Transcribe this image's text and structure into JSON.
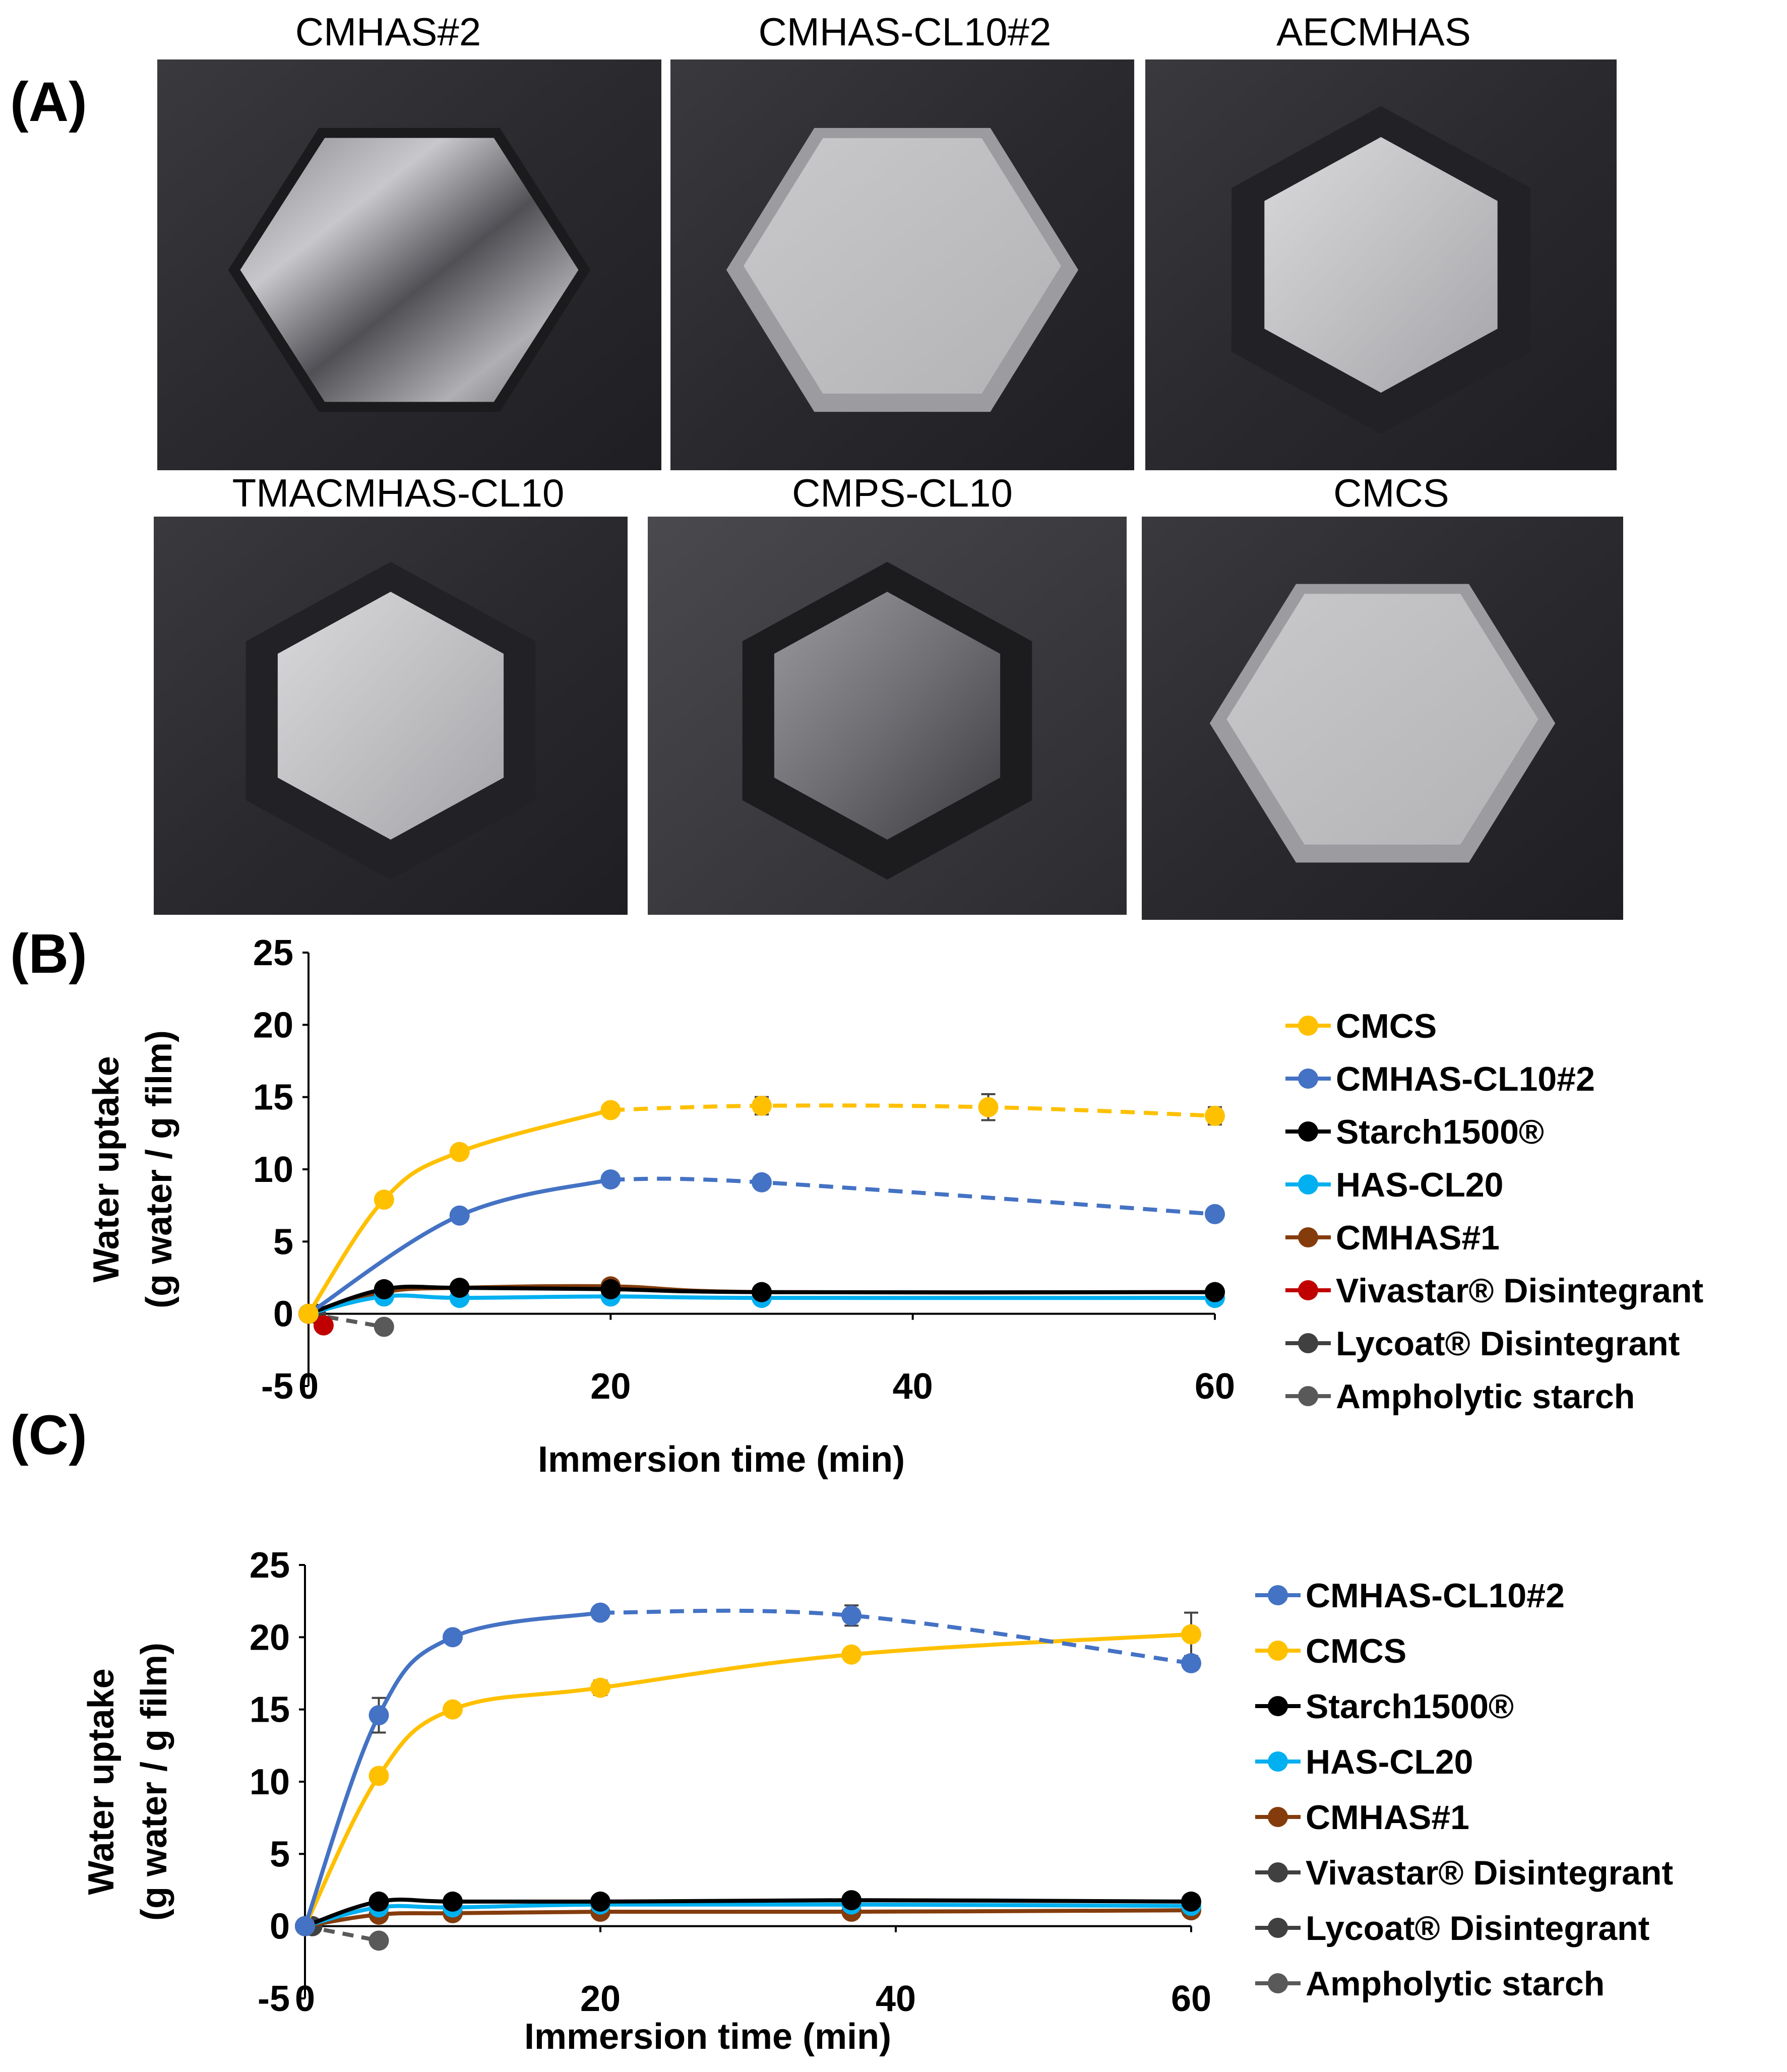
{
  "panels": {
    "a": "(A)",
    "b": "(B)",
    "c": "(C)"
  },
  "photos": [
    {
      "label": "CMHAS#2",
      "style": "wrinkled-clear"
    },
    {
      "label": "CMHAS-CL10#2",
      "style": "translucent-light"
    },
    {
      "label": "AECMHAS",
      "style": "framed-light"
    },
    {
      "label": "TMACMHAS-CL10",
      "style": "framed-light"
    },
    {
      "label": "CMPS-CL10",
      "style": "framed-dark"
    },
    {
      "label": "CMCS",
      "style": "translucent-light"
    }
  ],
  "colors": {
    "CMCS": "#ffc000",
    "CMHAS-CL10#2": "#4472c4",
    "Starch1500": "#000000",
    "HAS-CL20": "#00b0f0",
    "CMHAS#1": "#843c0c",
    "Vivastar": "#c00000",
    "Lycoat": "#404040",
    "Ampholytic": "#595959"
  },
  "chart_data": [
    {
      "id": "B",
      "type": "line",
      "xlabel": "Immersion time (min)",
      "ylabel_line1": "Water uptake",
      "ylabel_line2": "(g water / g film)",
      "xlim": [
        0,
        60
      ],
      "ylim": [
        -5,
        25
      ],
      "xticks": [
        0,
        20,
        40,
        60
      ],
      "yticks": [
        -5,
        0,
        5,
        10,
        15,
        20,
        25
      ],
      "legend_position": "right",
      "legend": [
        "CMCS",
        "CMHAS-CL10#2",
        "Starch1500®",
        "HAS-CL20",
        "CMHAS#1",
        "Vivastar® Disintegrant",
        "Lycoat® Disintegrant",
        "Ampholytic starch"
      ],
      "series": [
        {
          "name": "CMCS",
          "color_key": "CMCS",
          "solid_until": 20,
          "x": [
            0,
            5,
            10,
            20,
            30,
            45,
            60
          ],
          "y": [
            0,
            7.9,
            11.2,
            14.1,
            14.4,
            14.3,
            13.7
          ],
          "err": [
            0,
            0.3,
            0.3,
            0.4,
            0.6,
            0.9,
            0.6
          ]
        },
        {
          "name": "CMHAS-CL10#2",
          "color_key": "CMHAS-CL10#2",
          "solid_until": 20,
          "x": [
            0,
            10,
            20,
            30,
            60
          ],
          "y": [
            0,
            6.8,
            9.3,
            9.1,
            6.9
          ],
          "err": [
            0,
            0,
            0,
            0,
            0
          ]
        },
        {
          "name": "Starch1500®",
          "color_key": "Starch1500",
          "solid_until": 60,
          "x": [
            0,
            5,
            10,
            20,
            30,
            60
          ],
          "y": [
            0,
            1.7,
            1.8,
            1.7,
            1.5,
            1.5
          ],
          "err": [
            0,
            0,
            0,
            0,
            0,
            0
          ]
        },
        {
          "name": "HAS-CL20",
          "color_key": "HAS-CL20",
          "solid_until": 60,
          "x": [
            0,
            5,
            10,
            20,
            30,
            60
          ],
          "y": [
            0,
            1.2,
            1.1,
            1.2,
            1.1,
            1.1
          ],
          "err": [
            0,
            0,
            0,
            0,
            0,
            0
          ]
        },
        {
          "name": "CMHAS#1",
          "color_key": "CMHAS#1",
          "solid_until": 60,
          "x": [
            0,
            5,
            10,
            20,
            30,
            60
          ],
          "y": [
            0,
            1.5,
            1.8,
            1.9,
            1.5,
            1.5
          ],
          "err": [
            0,
            0,
            0,
            0,
            0,
            0
          ]
        },
        {
          "name": "Vivastar® Disintegrant",
          "color_key": "Vivastar",
          "solid_until": 60,
          "x": [
            0,
            1
          ],
          "y": [
            0,
            -0.8
          ],
          "err": [
            0,
            0
          ]
        },
        {
          "name": "Lycoat® Disintegrant",
          "color_key": "Lycoat",
          "solid_until": 60,
          "x": [
            0,
            0.5
          ],
          "y": [
            0,
            0
          ],
          "err": [
            0,
            0
          ]
        },
        {
          "name": "Ampholytic starch",
          "color_key": "Ampholytic",
          "solid_until": 0,
          "x": [
            0,
            5
          ],
          "y": [
            0,
            -0.9
          ],
          "err": [
            0,
            0
          ]
        }
      ]
    },
    {
      "id": "C",
      "type": "line",
      "xlabel": "Immersion time (min)",
      "ylabel_line1": "Water uptake",
      "ylabel_line2": "(g water / g film)",
      "xlim": [
        0,
        60
      ],
      "ylim": [
        -5,
        25
      ],
      "xticks": [
        0,
        20,
        40,
        60
      ],
      "yticks": [
        -5,
        0,
        5,
        10,
        15,
        20,
        25
      ],
      "legend_position": "right",
      "legend": [
        "CMHAS-CL10#2",
        "CMCS",
        "Starch1500®",
        "HAS-CL20",
        "CMHAS#1",
        "Vivastar® Disintegrant",
        "Lycoat® Disintegrant",
        "Ampholytic starch"
      ],
      "series": [
        {
          "name": "CMHAS-CL10#2",
          "color_key": "CMHAS-CL10#2",
          "solid_until": 20,
          "x": [
            0,
            5,
            10,
            20,
            37,
            60
          ],
          "y": [
            0,
            14.6,
            20.0,
            21.7,
            21.5,
            18.2
          ],
          "err": [
            0,
            1.2,
            0.4,
            0,
            0.7,
            0
          ]
        },
        {
          "name": "CMCS",
          "color_key": "CMCS",
          "solid_until": 60,
          "x": [
            0,
            5,
            10,
            20,
            37,
            60
          ],
          "y": [
            0,
            10.4,
            15.0,
            16.5,
            18.8,
            20.2
          ],
          "err": [
            0,
            0,
            0,
            0.5,
            0,
            1.5
          ]
        },
        {
          "name": "Starch1500®",
          "color_key": "Starch1500",
          "solid_until": 60,
          "x": [
            0,
            5,
            10,
            20,
            37,
            60
          ],
          "y": [
            0,
            1.7,
            1.7,
            1.7,
            1.8,
            1.7
          ],
          "err": [
            0,
            0,
            0,
            0,
            0,
            0
          ]
        },
        {
          "name": "HAS-CL20",
          "color_key": "HAS-CL20",
          "solid_until": 60,
          "x": [
            0,
            5,
            10,
            20,
            37,
            60
          ],
          "y": [
            0,
            1.3,
            1.3,
            1.5,
            1.5,
            1.4
          ],
          "err": [
            0,
            0,
            0,
            0,
            0,
            0
          ]
        },
        {
          "name": "CMHAS#1",
          "color_key": "CMHAS#1",
          "solid_until": 60,
          "x": [
            0,
            5,
            10,
            20,
            37,
            60
          ],
          "y": [
            0,
            0.8,
            0.9,
            1.0,
            1.0,
            1.1
          ],
          "err": [
            0,
            0,
            0,
            0,
            0,
            0
          ]
        },
        {
          "name": "Vivastar® Disintegrant",
          "color_key": "Lycoat",
          "solid_until": 60,
          "x": [
            0,
            0.5
          ],
          "y": [
            0,
            0
          ],
          "err": [
            0,
            0
          ]
        },
        {
          "name": "Lycoat® Disintegrant",
          "color_key": "Lycoat",
          "solid_until": 60,
          "x": [
            0,
            0.5
          ],
          "y": [
            0,
            0
          ],
          "err": [
            0,
            0
          ]
        },
        {
          "name": "Ampholytic starch",
          "color_key": "Ampholytic",
          "solid_until": 0,
          "x": [
            0,
            5
          ],
          "y": [
            0,
            -1.0
          ],
          "err": [
            0,
            0
          ]
        }
      ]
    }
  ]
}
